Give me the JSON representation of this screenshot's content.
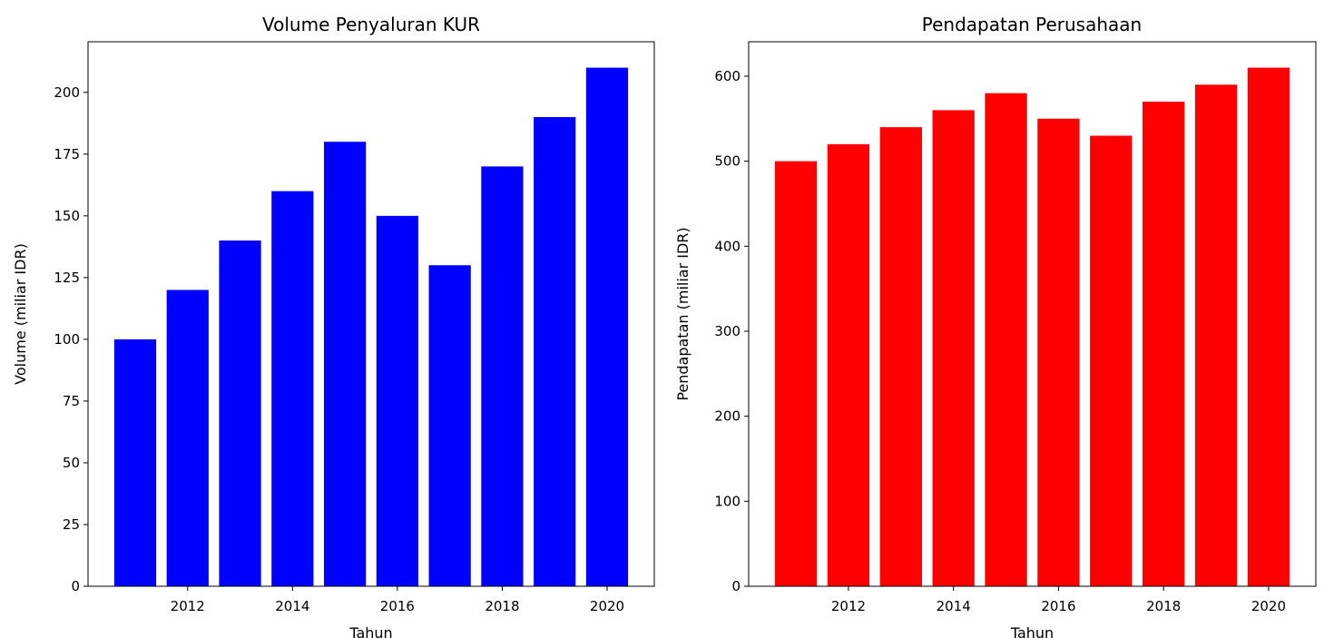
{
  "chart_data": [
    {
      "type": "bar",
      "title": "Volume Penyaluran KUR",
      "xlabel": "Tahun",
      "ylabel": "Volume (miliar IDR)",
      "x": [
        2011,
        2012,
        2013,
        2014,
        2015,
        2016,
        2017,
        2018,
        2019,
        2020
      ],
      "values": [
        100,
        120,
        140,
        160,
        180,
        150,
        130,
        170,
        190,
        210
      ],
      "xticks": [
        2012,
        2014,
        2016,
        2018,
        2020
      ],
      "yticks": [
        0,
        25,
        50,
        75,
        100,
        125,
        150,
        175,
        200
      ],
      "xlim": [
        2010.1,
        2020.9
      ],
      "ylim": [
        0,
        220.5
      ],
      "color": "#0000ff",
      "grid": false
    },
    {
      "type": "bar",
      "title": "Pendapatan Perusahaan",
      "xlabel": "Tahun",
      "ylabel": "Pendapatan (miliar IDR)",
      "x": [
        2011,
        2012,
        2013,
        2014,
        2015,
        2016,
        2017,
        2018,
        2019,
        2020
      ],
      "values": [
        500,
        520,
        540,
        560,
        580,
        550,
        530,
        570,
        590,
        610
      ],
      "xticks": [
        2012,
        2014,
        2016,
        2018,
        2020
      ],
      "yticks": [
        0,
        100,
        200,
        300,
        400,
        500,
        600
      ],
      "xlim": [
        2010.1,
        2020.9
      ],
      "ylim": [
        0,
        640.5
      ],
      "color": "#ff0000",
      "grid": false
    }
  ]
}
